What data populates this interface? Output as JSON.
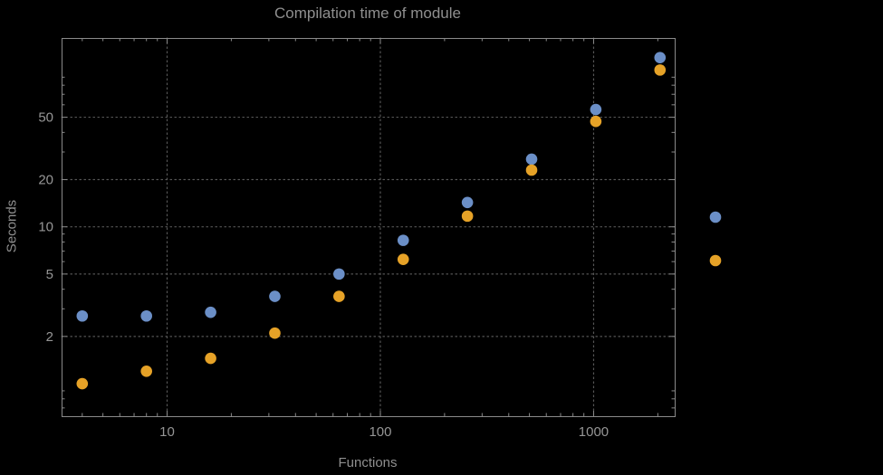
{
  "title": "Compilation time of module",
  "colors": {
    "background": "#000000",
    "text": "#969696",
    "title_text": "#8f8f8f",
    "frame": "#8a8a8a",
    "grid": "#565656",
    "series_blue": "#6b8fc7",
    "series_orange": "#e6a227"
  },
  "chart_data": {
    "type": "scatter",
    "title": "Compilation time of module",
    "xlabel": "Functions",
    "ylabel": "Seconds",
    "x_scale": "log",
    "y_scale": "log",
    "xlim": [
      3.2,
      2400
    ],
    "ylim": [
      0.62,
      160
    ],
    "x_ticks": [
      10,
      100,
      1000
    ],
    "y_ticks": [
      2,
      5,
      10,
      20,
      50
    ],
    "grid": true,
    "x": [
      4,
      8,
      16,
      32,
      64,
      128,
      256,
      512,
      1024,
      2048
    ],
    "series": [
      {
        "name": "blue",
        "color": "#6b8fc7",
        "values": [
          2.7,
          2.7,
          2.85,
          3.6,
          5.0,
          8.2,
          14.3,
          27,
          56,
          120
        ]
      },
      {
        "name": "orange",
        "color": "#e6a227",
        "values": [
          1.0,
          1.2,
          1.45,
          2.1,
          3.6,
          6.2,
          11.7,
          23,
          47,
          100
        ]
      }
    ],
    "legend": {
      "position": "right",
      "items": [
        {
          "color": "#6b8fc7",
          "label": ""
        },
        {
          "color": "#e6a227",
          "label": ""
        }
      ]
    }
  }
}
